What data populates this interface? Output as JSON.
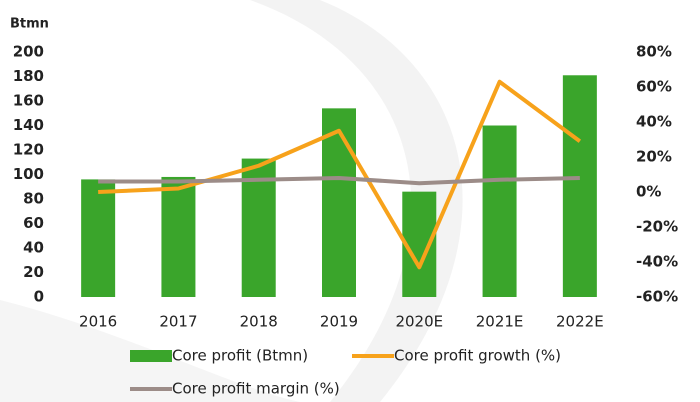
{
  "chart_data": {
    "type": "bar-line",
    "y_axis_label": "Btmn",
    "categories": [
      "2016",
      "2017",
      "2018",
      "2019",
      "2020E",
      "2021E",
      "2022E"
    ],
    "series": [
      {
        "name": "Core profit (Btmn)",
        "type": "bar",
        "color": "#3aa52b",
        "values": [
          96,
          98,
          113,
          154,
          86,
          140,
          181
        ]
      },
      {
        "name": "Core profit growth (%)",
        "type": "line",
        "axis": "y2",
        "color": "#f7a21b",
        "values": [
          0,
          2,
          15,
          35,
          -43,
          63,
          29
        ]
      },
      {
        "name": "Core profit margin (%)",
        "type": "line",
        "axis": "y2",
        "color": "#9c8c88",
        "values": [
          6,
          6,
          7,
          8,
          5,
          7,
          8
        ]
      }
    ],
    "ylim": [
      0,
      200
    ],
    "yticks": [
      0,
      20,
      40,
      60,
      80,
      100,
      120,
      140,
      160,
      180,
      200
    ],
    "y2lim": [
      -60,
      80
    ],
    "y2ticks": [
      {
        "value": -60,
        "label": "-60%"
      },
      {
        "value": -40,
        "label": "-40%"
      },
      {
        "value": -20,
        "label": "-20%"
      },
      {
        "value": 0,
        "label": "0%"
      },
      {
        "value": 20,
        "label": "20%"
      },
      {
        "value": 40,
        "label": "40%"
      },
      {
        "value": 60,
        "label": "60%"
      },
      {
        "value": 80,
        "label": "80%"
      }
    ],
    "grid": false,
    "legend": "bottom"
  }
}
